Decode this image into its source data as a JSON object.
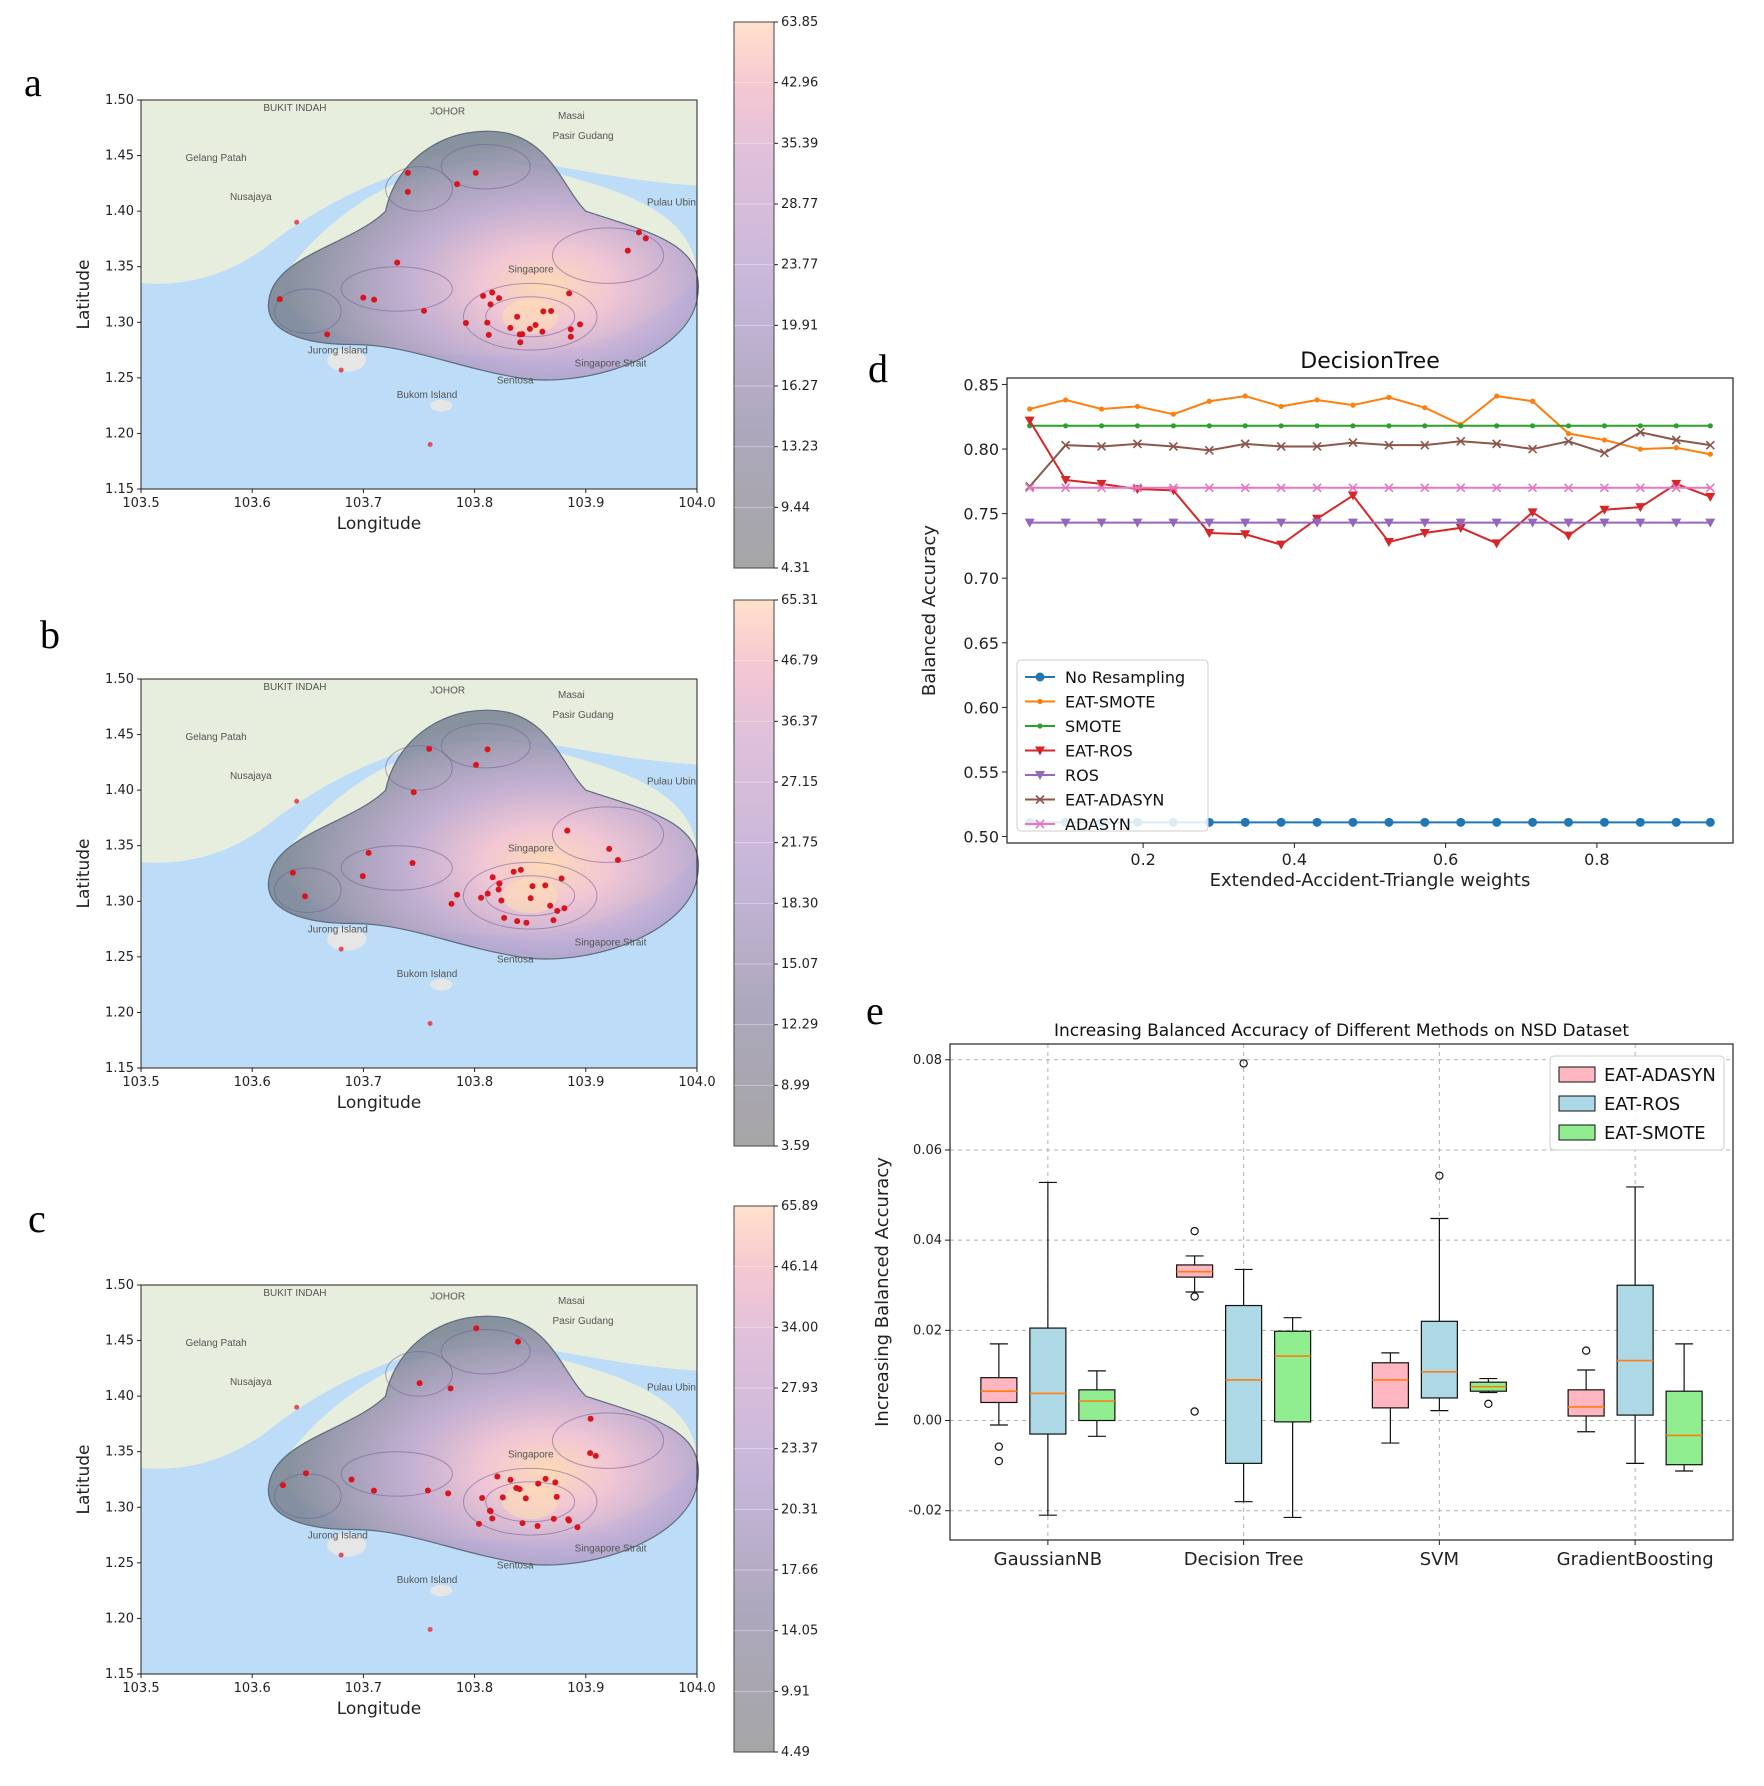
{
  "panels": {
    "a": {
      "letter": "a",
      "colorbar_ticks": [
        "63.85",
        "42.96",
        "35.39",
        "28.77",
        "23.77",
        "19.91",
        "16.27",
        "13.23",
        "9.44",
        "4.31"
      ]
    },
    "b": {
      "letter": "b",
      "colorbar_ticks": [
        "65.31",
        "46.79",
        "36.37",
        "27.15",
        "21.75",
        "18.30",
        "15.07",
        "12.29",
        "8.99",
        "3.59"
      ]
    },
    "c": {
      "letter": "c",
      "colorbar_ticks": [
        "65.89",
        "46.14",
        "34.00",
        "27.93",
        "23.37",
        "20.31",
        "17.66",
        "14.05",
        "9.91",
        "4.49"
      ]
    }
  },
  "map_common": {
    "xlabel": "Longitude",
    "ylabel": "Latitude",
    "xticks": [
      "103.5",
      "103.6",
      "103.7",
      "103.8",
      "103.9",
      "104.0"
    ],
    "yticks": [
      "1.50",
      "1.45",
      "1.40",
      "1.35",
      "1.30",
      "1.25",
      "1.20",
      "1.15"
    ],
    "place_labels": {
      "pasir_gudang": "Pasir Gudang",
      "masai": "Masai",
      "bukit_indah": "BUKIT INDAH",
      "johor": "JOHOR",
      "gelang_patah": "Gelang Patah",
      "nusajaya": "Nusajaya",
      "pulau_ubin": "Pulau Ubin",
      "singapore": "Singapore",
      "jurong_island": "Jurong Island",
      "sentosa": "Sentosa",
      "bukom_island": "Bukom Island",
      "singapore_strait": "Singapore Strait"
    },
    "colors": {
      "sea": "#bcdcf7",
      "land": "#e8eedd",
      "kde_outer": "#8a96a6",
      "kde_mid": "#b9a3cc",
      "kde_hot": "#f6cfb4",
      "point": "#d9141e"
    }
  },
  "chart_data": [
    {
      "panel": "d",
      "type": "line",
      "title": "DecisionTree",
      "xlabel": "Extended-Accident-Triangle weights",
      "ylabel": "Balanced Accuracy",
      "xlim": [
        0.02,
        0.98
      ],
      "ylim": [
        0.495,
        0.855
      ],
      "xticks": [
        0.2,
        0.4,
        0.6,
        0.8
      ],
      "yticks": [
        0.5,
        0.55,
        0.6,
        0.65,
        0.7,
        0.75,
        0.8,
        0.85
      ],
      "x": [
        0.05,
        0.0975,
        0.145,
        0.1925,
        0.24,
        0.2875,
        0.335,
        0.3825,
        0.43,
        0.4775,
        0.525,
        0.5725,
        0.62,
        0.6675,
        0.715,
        0.7625,
        0.81,
        0.8575,
        0.905,
        0.95
      ],
      "legend_position": "lower-left",
      "series": [
        {
          "name": "No Resampling",
          "color": "#1f77b4",
          "marker": "circle",
          "values": [
            0.511,
            0.511,
            0.511,
            0.511,
            0.511,
            0.511,
            0.511,
            0.511,
            0.511,
            0.511,
            0.511,
            0.511,
            0.511,
            0.511,
            0.511,
            0.511,
            0.511,
            0.511,
            0.511,
            0.511
          ]
        },
        {
          "name": "EAT-SMOTE",
          "color": "#ff7f0e",
          "marker": "small-dot",
          "values": [
            0.831,
            0.838,
            0.831,
            0.833,
            0.827,
            0.837,
            0.841,
            0.833,
            0.838,
            0.834,
            0.84,
            0.832,
            0.819,
            0.841,
            0.837,
            0.812,
            0.807,
            0.8,
            0.801,
            0.796
          ]
        },
        {
          "name": "SMOTE",
          "color": "#2ca02c",
          "marker": "small-dot",
          "values": [
            0.818,
            0.818,
            0.818,
            0.818,
            0.818,
            0.818,
            0.818,
            0.818,
            0.818,
            0.818,
            0.818,
            0.818,
            0.818,
            0.818,
            0.818,
            0.818,
            0.818,
            0.818,
            0.818,
            0.818
          ]
        },
        {
          "name": "EAT-ROS",
          "color": "#d62728",
          "marker": "triangle-down",
          "values": [
            0.822,
            0.776,
            0.773,
            0.769,
            0.768,
            0.735,
            0.734,
            0.726,
            0.746,
            0.764,
            0.728,
            0.735,
            0.739,
            0.727,
            0.751,
            0.733,
            0.753,
            0.755,
            0.773,
            0.763
          ]
        },
        {
          "name": "ROS",
          "color": "#9467bd",
          "marker": "triangle-down",
          "values": [
            0.743,
            0.743,
            0.743,
            0.743,
            0.743,
            0.743,
            0.743,
            0.743,
            0.743,
            0.743,
            0.743,
            0.743,
            0.743,
            0.743,
            0.743,
            0.743,
            0.743,
            0.743,
            0.743,
            0.743
          ]
        },
        {
          "name": "EAT-ADASYN",
          "color": "#8c564b",
          "marker": "x",
          "values": [
            0.771,
            0.803,
            0.802,
            0.804,
            0.802,
            0.799,
            0.804,
            0.802,
            0.802,
            0.805,
            0.803,
            0.803,
            0.806,
            0.804,
            0.8,
            0.806,
            0.797,
            0.813,
            0.807,
            0.803
          ]
        },
        {
          "name": "ADASYN",
          "color": "#e377c2",
          "marker": "x",
          "values": [
            0.77,
            0.77,
            0.77,
            0.77,
            0.77,
            0.77,
            0.77,
            0.77,
            0.77,
            0.77,
            0.77,
            0.77,
            0.77,
            0.77,
            0.77,
            0.77,
            0.77,
            0.77,
            0.77,
            0.77
          ]
        }
      ]
    },
    {
      "panel": "e",
      "type": "box",
      "title": "Increasing Balanced Accuracy of Different Methods on NSD Dataset",
      "xlabel": "",
      "ylabel": "Increasing Balanced Accuracy",
      "ylim": [
        -0.0265,
        0.0835
      ],
      "yticks": [
        -0.02,
        0.0,
        0.02,
        0.04,
        0.06,
        0.08
      ],
      "categories": [
        "GaussianNB",
        "Decision Tree",
        "SVM",
        "GradientBoosting"
      ],
      "grid": true,
      "legend_position": "top-right",
      "series": [
        {
          "name": "EAT-ADASYN",
          "color": "#ffb6c1",
          "boxes": [
            {
              "whislo": -0.001,
              "q1": 0.004,
              "med": 0.0065,
              "q3": 0.0095,
              "whishi": 0.017,
              "fliers": [
                -0.0058,
                -0.009
              ]
            },
            {
              "whislo": 0.0285,
              "q1": 0.0318,
              "med": 0.033,
              "q3": 0.0345,
              "whishi": 0.0365,
              "fliers": [
                0.042,
                0.0275,
                0.002
              ]
            },
            {
              "whislo": -0.005,
              "q1": 0.0028,
              "med": 0.009,
              "q3": 0.0128,
              "whishi": 0.015,
              "fliers": []
            },
            {
              "whislo": -0.0025,
              "q1": 0.001,
              "med": 0.003,
              "q3": 0.0068,
              "whishi": 0.0112,
              "fliers": [
                0.0155
              ]
            }
          ]
        },
        {
          "name": "EAT-ROS",
          "color": "#add8e6",
          "boxes": [
            {
              "whislo": -0.021,
              "q1": -0.003,
              "med": 0.006,
              "q3": 0.0205,
              "whishi": 0.0528,
              "fliers": []
            },
            {
              "whislo": -0.018,
              "q1": -0.0095,
              "med": 0.009,
              "q3": 0.0255,
              "whishi": 0.0335,
              "fliers": [
                0.0792
              ]
            },
            {
              "whislo": 0.0022,
              "q1": 0.005,
              "med": 0.0108,
              "q3": 0.022,
              "whishi": 0.0448,
              "fliers": [
                0.0543
              ]
            },
            {
              "whislo": -0.0095,
              "q1": 0.0012,
              "med": 0.0133,
              "q3": 0.03,
              "whishi": 0.0518,
              "fliers": []
            }
          ]
        },
        {
          "name": "EAT-SMOTE",
          "color": "#90ee90",
          "boxes": [
            {
              "whislo": -0.0035,
              "q1": 0.0,
              "med": 0.0043,
              "q3": 0.0068,
              "whishi": 0.011,
              "fliers": []
            },
            {
              "whislo": -0.0215,
              "q1": -0.0003,
              "med": 0.0143,
              "q3": 0.0198,
              "whishi": 0.0228,
              "fliers": []
            },
            {
              "whislo": 0.0062,
              "q1": 0.0065,
              "med": 0.0075,
              "q3": 0.0085,
              "whishi": 0.0093,
              "fliers": [
                0.0037
              ]
            },
            {
              "whislo": -0.0112,
              "q1": -0.0098,
              "med": -0.0033,
              "q3": 0.0065,
              "whishi": 0.017,
              "fliers": []
            }
          ]
        }
      ]
    }
  ]
}
